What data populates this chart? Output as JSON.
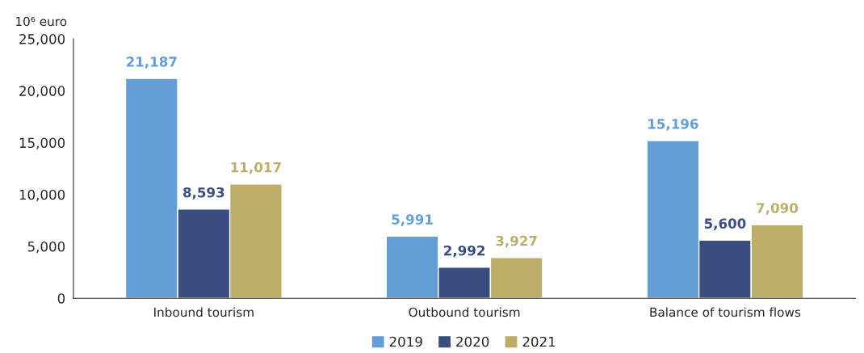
{
  "chart_data": {
    "type": "bar",
    "ylabel": "10⁶ euro",
    "categories": [
      "Inbound tourism",
      "Outbound tourism",
      "Balance of tourism flows"
    ],
    "series": [
      {
        "name": "2019",
        "color": "#629fd6",
        "values": [
          21187,
          5991,
          15196
        ],
        "value_labels": [
          "21,187",
          "5,991",
          "15,196"
        ]
      },
      {
        "name": "2020",
        "color": "#394d7f",
        "values": [
          8593,
          2992,
          5600
        ],
        "value_labels": [
          "8,593",
          "2,992",
          "5,600"
        ]
      },
      {
        "name": "2021",
        "color": "#bcad69",
        "values": [
          11017,
          3927,
          7090
        ],
        "value_labels": [
          "11,017",
          "3,927",
          "7,090"
        ]
      }
    ],
    "ylim": [
      0,
      25000
    ],
    "yticks": [
      0,
      {
        "value": 5000,
        "label": "5,000"
      },
      {
        "value": 10000,
        "label": "10,000"
      },
      {
        "value": 15000,
        "label": "15,000"
      },
      {
        "value": 20000,
        "label": "20,000"
      },
      {
        "value": 25000,
        "label": "25,000"
      }
    ],
    "grid": false,
    "legend": "bottom"
  }
}
